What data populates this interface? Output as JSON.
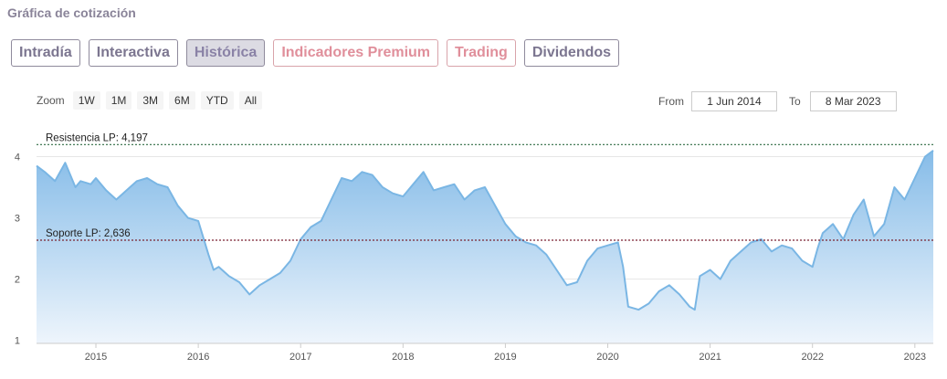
{
  "section": {
    "title": "Gráfica de cotización"
  },
  "tabs": [
    {
      "label": "Intradía",
      "active": false,
      "premium": false
    },
    {
      "label": "Interactiva",
      "active": false,
      "premium": false
    },
    {
      "label": "Histórica",
      "active": true,
      "premium": false
    },
    {
      "label": "Indicadores Premium",
      "active": false,
      "premium": true
    },
    {
      "label": "Trading",
      "active": false,
      "premium": true
    },
    {
      "label": "Dividendos",
      "active": false,
      "premium": false
    }
  ],
  "zoom": {
    "label": "Zoom",
    "buttons": [
      "1W",
      "1M",
      "3M",
      "6M",
      "YTD",
      "All"
    ]
  },
  "range": {
    "from_label": "From",
    "from_value": "1 Jun 2014",
    "to_label": "To",
    "to_value": "8 Mar 2023"
  },
  "colors": {
    "line": "#7ab6e4",
    "area_top": "#86bce8",
    "area_bottom": "#eef5fc",
    "resistance": "#2e6b43",
    "support": "#7a2230",
    "grid": "#e6e6e6",
    "tab_text": "#7c7690",
    "premium_text": "#e08f9b"
  },
  "chart_data": {
    "type": "area",
    "x_unit": "year",
    "x": [
      2014.42,
      2014.5,
      2014.6,
      2014.7,
      2014.8,
      2014.85,
      2014.95,
      2015.0,
      2015.1,
      2015.2,
      2015.3,
      2015.4,
      2015.5,
      2015.6,
      2015.7,
      2015.8,
      2015.9,
      2016.0,
      2016.1,
      2016.15,
      2016.2,
      2016.3,
      2016.4,
      2016.5,
      2016.6,
      2016.7,
      2016.8,
      2016.9,
      2017.0,
      2017.1,
      2017.2,
      2017.3,
      2017.4,
      2017.5,
      2017.6,
      2017.7,
      2017.8,
      2017.9,
      2018.0,
      2018.1,
      2018.2,
      2018.3,
      2018.4,
      2018.5,
      2018.6,
      2018.7,
      2018.8,
      2018.9,
      2019.0,
      2019.1,
      2019.2,
      2019.3,
      2019.4,
      2019.5,
      2019.6,
      2019.7,
      2019.8,
      2019.9,
      2020.0,
      2020.1,
      2020.15,
      2020.2,
      2020.3,
      2020.4,
      2020.5,
      2020.6,
      2020.7,
      2020.8,
      2020.85,
      2020.9,
      2021.0,
      2021.1,
      2021.2,
      2021.3,
      2021.4,
      2021.5,
      2021.6,
      2021.7,
      2021.8,
      2021.9,
      2022.0,
      2022.05,
      2022.1,
      2022.2,
      2022.3,
      2022.4,
      2022.5,
      2022.6,
      2022.7,
      2022.8,
      2022.9,
      2023.0,
      2023.1,
      2023.18
    ],
    "series": [
      {
        "values": [
          3.85,
          3.75,
          3.6,
          3.9,
          3.5,
          3.6,
          3.55,
          3.65,
          3.45,
          3.3,
          3.45,
          3.6,
          3.65,
          3.55,
          3.5,
          3.2,
          3.0,
          2.95,
          2.4,
          2.15,
          2.2,
          2.05,
          1.95,
          1.75,
          1.9,
          2.0,
          2.1,
          2.3,
          2.65,
          2.85,
          2.95,
          3.3,
          3.65,
          3.6,
          3.75,
          3.7,
          3.5,
          3.4,
          3.35,
          3.55,
          3.75,
          3.45,
          3.5,
          3.55,
          3.3,
          3.45,
          3.5,
          3.2,
          2.9,
          2.7,
          2.6,
          2.55,
          2.4,
          2.15,
          1.9,
          1.95,
          2.3,
          2.5,
          2.55,
          2.6,
          2.2,
          1.55,
          1.5,
          1.6,
          1.8,
          1.9,
          1.75,
          1.55,
          1.5,
          2.05,
          2.15,
          2.0,
          2.3,
          2.45,
          2.6,
          2.65,
          2.45,
          2.55,
          2.5,
          2.3,
          2.2,
          2.5,
          2.75,
          2.9,
          2.65,
          3.05,
          3.3,
          2.7,
          2.9,
          3.5,
          3.3,
          3.65,
          4.0,
          4.1
        ]
      }
    ],
    "xticks": [
      "2015",
      "2016",
      "2017",
      "2018",
      "2019",
      "2020",
      "2021",
      "2022",
      "2023"
    ],
    "yticks": [
      "1",
      "2",
      "3",
      "4"
    ],
    "xlim": [
      2014.42,
      2023.18
    ],
    "ylim": [
      0.95,
      4.5
    ],
    "grid": true,
    "lines": [
      {
        "label": "Resistencia LP: 4,197",
        "value": 4.197,
        "style": "dotted"
      },
      {
        "label": "Soporte LP: 2,636",
        "value": 2.636,
        "style": "dotted"
      }
    ]
  }
}
